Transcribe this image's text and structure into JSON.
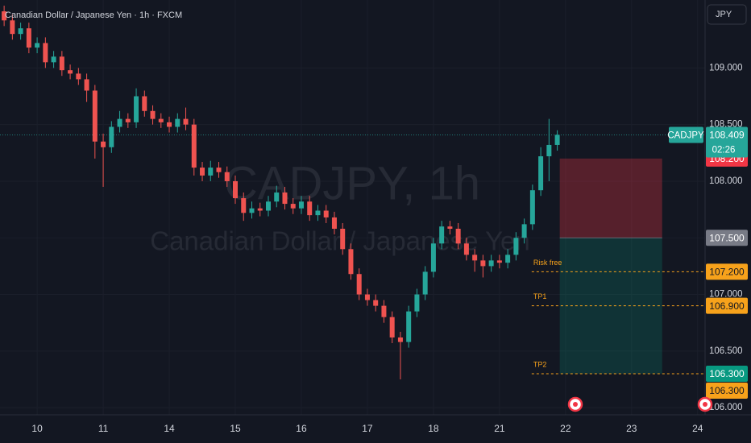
{
  "header": {
    "symbol_title": "Canadian Dollar / Japanese Yen · 1h · FXCM",
    "currency_button": "JPY"
  },
  "chart_data": {
    "type": "candlestick",
    "watermark": "CADJPY, 1h",
    "watermark_subtitle": "Canadian Dollar / Japanese Yen",
    "up_color": "#26a69a",
    "down_color": "#ef5350",
    "grid": true,
    "open": [
      109.5,
      109.42,
      109.3,
      109.35,
      109.18,
      109.22,
      109.05,
      109.1,
      108.98,
      108.95,
      108.9,
      108.8,
      108.35,
      108.3,
      108.48,
      108.55,
      108.52,
      108.75,
      108.62,
      108.55,
      108.52,
      108.48,
      108.55,
      108.5,
      108.12,
      108.05,
      108.12,
      108.08,
      108.0,
      107.85,
      107.72,
      107.76,
      107.74,
      107.82,
      107.9,
      107.8,
      107.76,
      107.82,
      107.7,
      107.74,
      107.68,
      107.58,
      107.4,
      107.18,
      107.0,
      106.95,
      106.9,
      106.8,
      106.62,
      106.58,
      106.85,
      107.0,
      107.2,
      107.45,
      107.6,
      107.58,
      107.45,
      107.35,
      107.3,
      107.25,
      107.3,
      107.28,
      107.35,
      107.5,
      107.62,
      107.92,
      108.22,
      108.32
    ],
    "high": [
      109.55,
      109.47,
      109.4,
      109.4,
      109.27,
      109.27,
      109.15,
      109.15,
      109.03,
      109.0,
      108.95,
      108.85,
      108.42,
      108.53,
      108.62,
      108.6,
      108.82,
      108.8,
      108.67,
      108.6,
      108.57,
      108.6,
      108.65,
      108.55,
      108.17,
      108.18,
      108.17,
      108.13,
      108.05,
      107.9,
      107.82,
      107.81,
      107.87,
      107.96,
      107.95,
      107.85,
      107.87,
      107.87,
      107.79,
      107.79,
      107.73,
      107.63,
      107.45,
      107.23,
      107.05,
      107.0,
      106.95,
      106.85,
      106.67,
      106.9,
      107.05,
      107.25,
      107.5,
      107.65,
      107.65,
      107.63,
      107.5,
      107.4,
      107.35,
      107.35,
      107.35,
      107.4,
      107.55,
      107.67,
      107.97,
      108.3,
      108.55,
      108.45
    ],
    "low": [
      109.37,
      109.25,
      109.25,
      109.13,
      109.13,
      109.0,
      109.0,
      108.93,
      108.9,
      108.85,
      108.7,
      108.2,
      107.95,
      108.25,
      108.43,
      108.47,
      108.47,
      108.57,
      108.5,
      108.47,
      108.43,
      108.43,
      108.45,
      108.05,
      108.0,
      108.0,
      108.03,
      107.95,
      107.8,
      107.65,
      107.67,
      107.69,
      107.69,
      107.77,
      107.75,
      107.71,
      107.71,
      107.65,
      107.65,
      107.63,
      107.53,
      107.35,
      107.13,
      106.95,
      106.9,
      106.85,
      106.75,
      106.57,
      106.25,
      106.53,
      106.8,
      106.95,
      107.15,
      107.4,
      107.53,
      107.4,
      107.3,
      107.2,
      107.15,
      107.2,
      107.23,
      107.23,
      107.3,
      107.45,
      107.57,
      107.87,
      108.0,
      108.27
    ],
    "close": [
      109.42,
      109.3,
      109.35,
      109.18,
      109.22,
      109.05,
      109.1,
      108.98,
      108.95,
      108.9,
      108.8,
      108.35,
      108.3,
      108.48,
      108.55,
      108.52,
      108.75,
      108.62,
      108.55,
      108.52,
      108.48,
      108.55,
      108.5,
      108.12,
      108.05,
      108.12,
      108.08,
      108.0,
      107.85,
      107.72,
      107.76,
      107.74,
      107.82,
      107.9,
      107.8,
      107.76,
      107.82,
      107.7,
      107.74,
      107.68,
      107.58,
      107.4,
      107.18,
      107.0,
      106.95,
      106.9,
      106.8,
      106.62,
      106.58,
      106.85,
      107.0,
      107.2,
      107.45,
      107.6,
      107.58,
      107.45,
      107.35,
      107.3,
      107.25,
      107.3,
      107.28,
      107.35,
      107.5,
      107.62,
      107.92,
      108.22,
      108.32,
      108.409
    ],
    "xlim": [
      -0.5,
      84.9
    ],
    "ylim": [
      105.937,
      109.6
    ],
    "xticks": [
      {
        "value": 4,
        "label": "10"
      },
      {
        "value": 12,
        "label": "11"
      },
      {
        "value": 20,
        "label": "14"
      },
      {
        "value": 28,
        "label": "15"
      },
      {
        "value": 36,
        "label": "16"
      },
      {
        "value": 44,
        "label": "17"
      },
      {
        "value": 52,
        "label": "18"
      },
      {
        "value": 60,
        "label": "21"
      },
      {
        "value": 68,
        "label": "22"
      },
      {
        "value": 76,
        "label": "23"
      },
      {
        "value": 84,
        "label": "24"
      }
    ],
    "yticks": [
      {
        "value": 109,
        "label": "109.000"
      },
      {
        "value": 108.5,
        "label": "108.500"
      },
      {
        "value": 108,
        "label": "108.000"
      },
      {
        "value": 107.5,
        "label": "107.500"
      },
      {
        "value": 107,
        "label": "107.000"
      },
      {
        "value": 106.5,
        "label": "106.500"
      },
      {
        "value": 106,
        "label": "106.000"
      }
    ],
    "last_price": {
      "symbol": "CADJPY",
      "value": 108.409,
      "countdown": "02:26",
      "color": "#26a69a"
    },
    "position": {
      "x_start": 67.3,
      "x_end": 79.7,
      "stop": {
        "value": 108.2,
        "label": "108.200",
        "color": "#f23645"
      },
      "entry": {
        "value": 107.5,
        "label": "107.500",
        "color": "#787b86"
      },
      "target": {
        "value": 106.3,
        "label": "106.300",
        "color": "#089981"
      }
    },
    "levels_x_start": 63.9,
    "level_color": "#f7a21b",
    "levels": [
      {
        "name": "Risk free",
        "value": 107.2,
        "label": "107.200"
      },
      {
        "name": "TP1",
        "value": 106.9,
        "label": "106.900"
      },
      {
        "name": "TP2",
        "value": 106.3,
        "label": "106.300"
      }
    ]
  }
}
